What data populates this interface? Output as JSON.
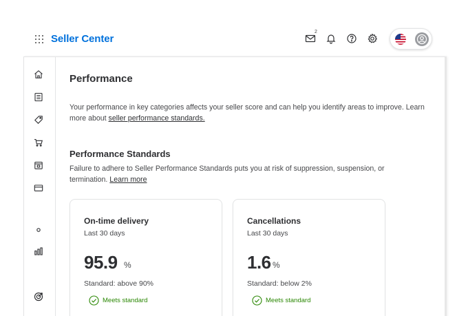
{
  "header": {
    "brand": "Seller Center",
    "icons": [
      "apps-grid-icon",
      "mail-icon",
      "bell-icon",
      "help-icon",
      "gear-icon"
    ],
    "mail_badge": "2",
    "account": {
      "flag": "us-flag-icon",
      "avatar": "user-avatar-icon"
    }
  },
  "sidebar": {
    "items": [
      "home-icon",
      "orders-list-icon",
      "tag-icon",
      "cart-icon",
      "calendar-box-icon",
      "card-icon",
      "dot-icon",
      "bar-chart-icon",
      "target-icon"
    ]
  },
  "page": {
    "title": "Performance",
    "intro_text": "Your performance in key categories affects your seller score and can help you identify areas to improve. Learn more about ",
    "intro_link": "seller performance standards."
  },
  "standards": {
    "title": "Performance Standards",
    "description": "Failure to adhere to Seller Performance Standards puts you at risk of suppression, suspension, or termination. ",
    "learn_more": "Learn more"
  },
  "cards": [
    {
      "title": "On-time delivery",
      "period": "Last 30 days",
      "value": "95.9",
      "unit": "%",
      "standard": "Standard: above 90%",
      "status": "Meets standard"
    },
    {
      "title": "Cancellations",
      "period": "Last 30 days",
      "value": "1.6",
      "unit": "%",
      "standard": "Standard: below 2%",
      "status": "Meets standard"
    }
  ],
  "colors": {
    "brand": "#0071dc",
    "success": "#2a8703",
    "text": "#2e2f32"
  }
}
